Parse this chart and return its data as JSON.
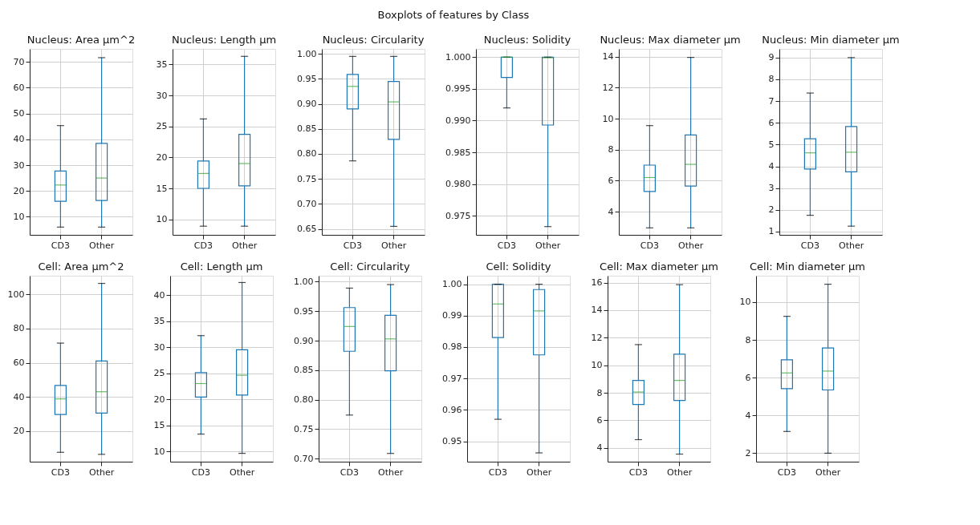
{
  "chart_data": [
    {
      "type": "box",
      "title": "Nucleus: Area µm^2",
      "annotations": [
        "Boxplots of features by Class"
      ],
      "categories": [
        "CD3",
        "Other"
      ],
      "grid": true,
      "ylim": [
        3,
        75
      ],
      "yticks": [
        10,
        20,
        30,
        40,
        50,
        60,
        70
      ],
      "boxes": [
        {
          "low": 6,
          "q1": 16,
          "median": 22.3,
          "q3": 27.7,
          "high": 45.3
        },
        {
          "low": 6,
          "q1": 16.3,
          "median": 25,
          "q3": 38.4,
          "high": 71.6
        }
      ]
    },
    {
      "type": "box",
      "title": "Nucleus: Length µm",
      "categories": [
        "CD3",
        "Other"
      ],
      "grid": true,
      "ylim": [
        7.5,
        37.5
      ],
      "yticks": [
        10,
        15,
        20,
        25,
        30,
        35
      ],
      "boxes": [
        {
          "low": 8.9,
          "q1": 15,
          "median": 17.4,
          "q3": 19.4,
          "high": 26.2
        },
        {
          "low": 8.9,
          "q1": 15.4,
          "median": 19,
          "q3": 23.7,
          "high": 36.3
        }
      ]
    },
    {
      "type": "box",
      "title": "Nucleus: Circularity",
      "categories": [
        "CD3",
        "Other"
      ],
      "grid": true,
      "ylim": [
        0.638,
        1.01
      ],
      "yticks": [
        0.65,
        {
          "value": 0.7,
          "label": "0.70"
        },
        0.75,
        {
          "value": 0.8,
          "label": "0.80"
        },
        0.85,
        {
          "value": 0.9,
          "label": "0.90"
        },
        0.95,
        {
          "value": 1,
          "label": "1.00"
        }
      ],
      "boxes": [
        {
          "low": 0.786,
          "q1": 0.89,
          "median": 0.935,
          "q3": 0.959,
          "high": 0.995
        },
        {
          "low": 0.655,
          "q1": 0.829,
          "median": 0.904,
          "q3": 0.945,
          "high": 0.995
        }
      ]
    },
    {
      "type": "box",
      "title": "Nucleus: Solidity",
      "categories": [
        "CD3",
        "Other"
      ],
      "grid": true,
      "ylim": [
        0.972,
        1.0013
      ],
      "yticks": [
        0.975,
        {
          "value": 0.98,
          "label": "0.980"
        },
        0.985,
        {
          "value": 0.99,
          "label": "0.990"
        },
        0.995,
        {
          "value": 1,
          "label": "1.000"
        }
      ],
      "boxes": [
        {
          "low": 0.992,
          "q1": 0.9968,
          "median": 1.0,
          "q3": 1.0,
          "high": 1.0
        },
        {
          "low": 0.9733,
          "q1": 0.9893,
          "median": 0.9999,
          "q3": 1.0,
          "high": 1.0
        }
      ]
    },
    {
      "type": "box",
      "title": "Nucleus: Max diameter µm",
      "categories": [
        "CD3",
        "Other"
      ],
      "grid": true,
      "ylim": [
        2.5,
        14.5
      ],
      "yticks": [
        4,
        6,
        8,
        10,
        12,
        14
      ],
      "boxes": [
        {
          "low": 2.95,
          "q1": 5.3,
          "median": 6.2,
          "q3": 7.0,
          "high": 9.55
        },
        {
          "low": 2.95,
          "q1": 5.65,
          "median": 7.05,
          "q3": 8.95,
          "high": 13.95
        }
      ]
    },
    {
      "type": "box",
      "title": "Nucleus: Min diameter µm",
      "categories": [
        "CD3",
        "Other"
      ],
      "grid": true,
      "ylim": [
        0.85,
        9.4
      ],
      "yticks": [
        1,
        2,
        3,
        4,
        5,
        6,
        7,
        8,
        9
      ],
      "boxes": [
        {
          "low": 1.75,
          "q1": 3.88,
          "median": 4.62,
          "q3": 5.27,
          "high": 7.37
        },
        {
          "low": 1.25,
          "q1": 3.75,
          "median": 4.65,
          "q3": 5.83,
          "high": 9.0
        }
      ]
    },
    {
      "type": "box",
      "title": "Cell: Area µm^2",
      "categories": [
        "CD3",
        "Other"
      ],
      "grid": true,
      "ylim": [
        2,
        111
      ],
      "yticks": [
        20,
        40,
        60,
        80,
        100
      ],
      "boxes": [
        {
          "low": 7.5,
          "q1": 29.7,
          "median": 38.8,
          "q3": 46.7,
          "high": 71.5
        },
        {
          "low": 6.3,
          "q1": 30.5,
          "median": 43,
          "q3": 61,
          "high": 106.5
        }
      ]
    },
    {
      "type": "box",
      "title": "Cell: Length µm",
      "categories": [
        "CD3",
        "Other"
      ],
      "grid": true,
      "ylim": [
        8,
        43.7
      ],
      "yticks": [
        10,
        15,
        20,
        25,
        30,
        35,
        40
      ],
      "boxes": [
        {
          "low": 13.3,
          "q1": 20.4,
          "median": 23,
          "q3": 25.1,
          "high": 32.2
        },
        {
          "low": 9.6,
          "q1": 20.8,
          "median": 24.6,
          "q3": 29.5,
          "high": 42.4
        }
      ]
    },
    {
      "type": "box",
      "title": "Cell: Circularity",
      "categories": [
        "CD3",
        "Other"
      ],
      "grid": true,
      "ylim": [
        0.695,
        1.01
      ],
      "yticks": [
        {
          "value": 0.7,
          "label": "0.70"
        },
        0.75,
        {
          "value": 0.8,
          "label": "0.80"
        },
        0.85,
        {
          "value": 0.9,
          "label": "0.90"
        },
        0.95,
        {
          "value": 1,
          "label": "1.00"
        }
      ],
      "boxes": [
        {
          "low": 0.774,
          "q1": 0.882,
          "median": 0.924,
          "q3": 0.956,
          "high": 0.989
        },
        {
          "low": 0.709,
          "q1": 0.849,
          "median": 0.903,
          "q3": 0.943,
          "high": 0.995
        }
      ]
    },
    {
      "type": "box",
      "title": "Cell: Solidity",
      "categories": [
        "CD3",
        "Other"
      ],
      "grid": true,
      "ylim": [
        0.9435,
        1.0027
      ],
      "yticks": [
        0.95,
        0.96,
        0.97,
        0.98,
        0.99,
        {
          "value": 1,
          "label": "1.00"
        }
      ],
      "boxes": [
        {
          "low": 0.957,
          "q1": 0.983,
          "median": 0.9937,
          "q3": 1.0,
          "high": 1.0
        },
        {
          "low": 0.9463,
          "q1": 0.9775,
          "median": 0.9915,
          "q3": 0.9983,
          "high": 1.0
        }
      ]
    },
    {
      "type": "box",
      "title": "Cell: Max diameter µm",
      "categories": [
        "CD3",
        "Other"
      ],
      "grid": true,
      "ylim": [
        3.0,
        16.5
      ],
      "yticks": [
        4,
        6,
        8,
        10,
        12,
        14,
        16
      ],
      "boxes": [
        {
          "low": 4.6,
          "q1": 7.15,
          "median": 8.05,
          "q3": 8.9,
          "high": 11.5
        },
        {
          "low": 3.55,
          "q1": 7.45,
          "median": 8.9,
          "q3": 10.8,
          "high": 15.85
        }
      ]
    },
    {
      "type": "box",
      "title": "Cell: Min diameter µm",
      "categories": [
        "CD3",
        "Other"
      ],
      "grid": true,
      "ylim": [
        1.55,
        11.4
      ],
      "yticks": [
        2,
        4,
        6,
        8,
        10
      ],
      "boxes": [
        {
          "low": 3.15,
          "q1": 5.42,
          "median": 6.25,
          "q3": 6.95,
          "high": 9.25
        },
        {
          "low": 2.0,
          "q1": 5.35,
          "median": 6.35,
          "q3": 7.57,
          "high": 10.95
        }
      ]
    }
  ]
}
